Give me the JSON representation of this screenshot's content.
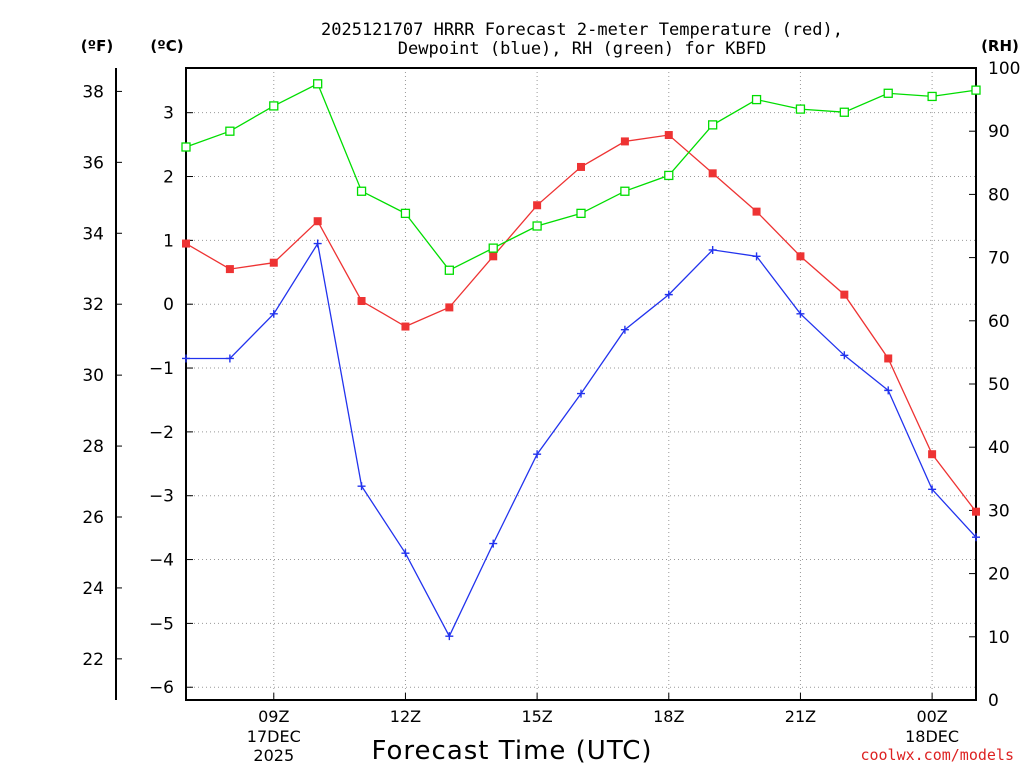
{
  "title_line1": "2025121707 HRRR Forecast 2-meter Temperature (red),",
  "title_line2": "Dewpoint (blue), RH (green) for KBFD",
  "unit_f": "(ºF)",
  "unit_c": "(ºC)",
  "unit_rh": "(RH)",
  "xlabel": "Forecast Time (UTC)",
  "watermark": "coolwx.com/models",
  "colors": {
    "temperature": "#ee3333",
    "dewpoint": "#2233ee",
    "rh": "#00dd00"
  },
  "chart_data": {
    "type": "line",
    "title": "2025121707 HRRR Forecast 2-meter Temperature (red), Dewpoint (blue), RH (green) for KBFD",
    "xlabel": "Forecast Time (UTC)",
    "x": [
      "07Z",
      "08Z",
      "09Z",
      "10Z",
      "11Z",
      "12Z",
      "13Z",
      "14Z",
      "15Z",
      "16Z",
      "17Z",
      "18Z",
      "19Z",
      "20Z",
      "21Z",
      "22Z",
      "23Z",
      "00Z",
      "01Z"
    ],
    "xlim": [
      0,
      18
    ],
    "x_ticks": [
      {
        "i": 2,
        "label": "09Z",
        "sub": [
          "17DEC",
          "2025"
        ]
      },
      {
        "i": 5,
        "label": "12Z"
      },
      {
        "i": 8,
        "label": "15Z"
      },
      {
        "i": 11,
        "label": "18Z"
      },
      {
        "i": 14,
        "label": "21Z"
      },
      {
        "i": 17,
        "label": "00Z",
        "sub": [
          "18DEC"
        ]
      }
    ],
    "y_celsius": {
      "label": "ºC",
      "lim": [
        -6.2,
        3.7
      ],
      "ticks": [
        -6,
        -5,
        -4,
        -3,
        -2,
        -1,
        0,
        1,
        2,
        3
      ]
    },
    "y_fahrenheit": {
      "label": "ºF",
      "ticks": [
        22,
        24,
        26,
        28,
        30,
        32,
        34,
        36,
        38
      ]
    },
    "y_rh": {
      "label": "RH",
      "lim": [
        0,
        100
      ],
      "ticks": [
        0,
        10,
        20,
        30,
        40,
        50,
        60,
        70,
        80,
        90,
        100
      ]
    },
    "series": [
      {
        "name": "Temperature",
        "axis": "celsius",
        "color": "#ee3333",
        "marker": "filled-square",
        "values": [
          0.95,
          0.55,
          0.65,
          1.3,
          0.05,
          -0.35,
          -0.05,
          0.75,
          1.55,
          2.15,
          2.55,
          2.65,
          2.05,
          1.45,
          0.75,
          0.15,
          -0.85,
          -2.35,
          -3.25
        ]
      },
      {
        "name": "Dewpoint",
        "axis": "celsius",
        "color": "#2233ee",
        "marker": "plus",
        "values": [
          -0.85,
          -0.85,
          -0.15,
          0.95,
          -2.85,
          -3.9,
          -5.2,
          -3.75,
          -2.35,
          -1.4,
          -0.4,
          0.15,
          0.85,
          0.75,
          -0.15,
          -0.8,
          -1.35,
          -2.9,
          -3.65
        ]
      },
      {
        "name": "RH",
        "axis": "rh",
        "color": "#00dd00",
        "marker": "open-square",
        "values": [
          87.5,
          90,
          94,
          97.5,
          80.5,
          77,
          68,
          71.5,
          75,
          77,
          80.5,
          83,
          91,
          95,
          93.5,
          93,
          96,
          95.5,
          96.5
        ]
      }
    ]
  }
}
